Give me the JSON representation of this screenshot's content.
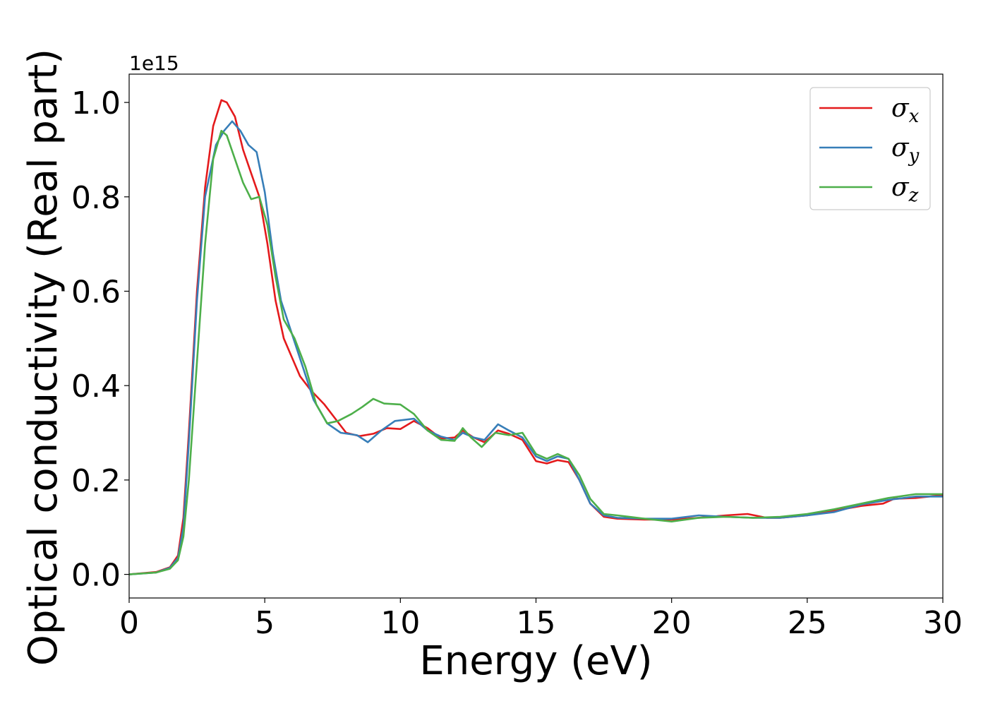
{
  "chart_data": {
    "type": "line",
    "xlabel": "Energy (eV)",
    "ylabel": "Optical conductivity (Real part)",
    "y_offset_label": "1e15",
    "xlim": [
      0,
      30
    ],
    "ylim": [
      -0.05,
      1.06
    ],
    "x_ticks": [
      0,
      5,
      10,
      15,
      20,
      25,
      30
    ],
    "x_tick_labels": [
      "0",
      "5",
      "10",
      "15",
      "20",
      "25",
      "30"
    ],
    "y_ticks": [
      0.0,
      0.2,
      0.4,
      0.6,
      0.8,
      1.0
    ],
    "y_tick_labels": [
      "0.0",
      "0.2",
      "0.4",
      "0.6",
      "0.8",
      "1.0"
    ],
    "grid": false,
    "legend_position": "top-right",
    "series": [
      {
        "name": "σx",
        "label_base": "σ",
        "label_sub": "x",
        "color": "#e41a1c",
        "points": [
          [
            0,
            0
          ],
          [
            1,
            0.005
          ],
          [
            1.5,
            0.015
          ],
          [
            1.8,
            0.04
          ],
          [
            2.0,
            0.12
          ],
          [
            2.2,
            0.3
          ],
          [
            2.5,
            0.6
          ],
          [
            2.8,
            0.82
          ],
          [
            3.1,
            0.95
          ],
          [
            3.4,
            1.005
          ],
          [
            3.6,
            1.0
          ],
          [
            3.9,
            0.97
          ],
          [
            4.2,
            0.9
          ],
          [
            4.5,
            0.85
          ],
          [
            4.8,
            0.8
          ],
          [
            5.1,
            0.7
          ],
          [
            5.4,
            0.58
          ],
          [
            5.7,
            0.5
          ],
          [
            6.0,
            0.46
          ],
          [
            6.3,
            0.42
          ],
          [
            6.7,
            0.39
          ],
          [
            7.2,
            0.36
          ],
          [
            7.6,
            0.33
          ],
          [
            8.0,
            0.3
          ],
          [
            8.5,
            0.293
          ],
          [
            9.0,
            0.298
          ],
          [
            9.5,
            0.31
          ],
          [
            10.0,
            0.308
          ],
          [
            10.5,
            0.325
          ],
          [
            11.0,
            0.31
          ],
          [
            11.5,
            0.288
          ],
          [
            12.0,
            0.29
          ],
          [
            12.3,
            0.305
          ],
          [
            12.7,
            0.29
          ],
          [
            13.1,
            0.28
          ],
          [
            13.6,
            0.305
          ],
          [
            14.0,
            0.298
          ],
          [
            14.5,
            0.285
          ],
          [
            15.0,
            0.24
          ],
          [
            15.4,
            0.235
          ],
          [
            15.8,
            0.242
          ],
          [
            16.2,
            0.238
          ],
          [
            16.6,
            0.2
          ],
          [
            17.0,
            0.15
          ],
          [
            17.5,
            0.122
          ],
          [
            18.0,
            0.118
          ],
          [
            19.0,
            0.116
          ],
          [
            20.0,
            0.116
          ],
          [
            21.0,
            0.12
          ],
          [
            22.0,
            0.125
          ],
          [
            22.8,
            0.128
          ],
          [
            23.5,
            0.12
          ],
          [
            24.0,
            0.12
          ],
          [
            25.0,
            0.125
          ],
          [
            26.0,
            0.135
          ],
          [
            27.0,
            0.145
          ],
          [
            27.8,
            0.15
          ],
          [
            28.2,
            0.16
          ],
          [
            29.0,
            0.162
          ],
          [
            30.0,
            0.168
          ]
        ]
      },
      {
        "name": "σy",
        "label_base": "σ",
        "label_sub": "y",
        "color": "#377eb8",
        "points": [
          [
            0,
            0
          ],
          [
            1,
            0.004
          ],
          [
            1.5,
            0.014
          ],
          [
            1.8,
            0.035
          ],
          [
            2.0,
            0.1
          ],
          [
            2.2,
            0.28
          ],
          [
            2.5,
            0.58
          ],
          [
            2.8,
            0.8
          ],
          [
            3.2,
            0.91
          ],
          [
            3.5,
            0.94
          ],
          [
            3.8,
            0.96
          ],
          [
            4.1,
            0.94
          ],
          [
            4.4,
            0.91
          ],
          [
            4.7,
            0.895
          ],
          [
            5.0,
            0.81
          ],
          [
            5.3,
            0.68
          ],
          [
            5.6,
            0.58
          ],
          [
            6.0,
            0.51
          ],
          [
            6.4,
            0.44
          ],
          [
            6.8,
            0.37
          ],
          [
            7.3,
            0.32
          ],
          [
            7.8,
            0.3
          ],
          [
            8.4,
            0.295
          ],
          [
            8.8,
            0.28
          ],
          [
            9.3,
            0.305
          ],
          [
            9.8,
            0.325
          ],
          [
            10.5,
            0.33
          ],
          [
            11.0,
            0.305
          ],
          [
            11.5,
            0.292
          ],
          [
            12.0,
            0.285
          ],
          [
            12.3,
            0.3
          ],
          [
            12.7,
            0.29
          ],
          [
            13.1,
            0.285
          ],
          [
            13.6,
            0.318
          ],
          [
            14.0,
            0.305
          ],
          [
            14.5,
            0.29
          ],
          [
            15.0,
            0.25
          ],
          [
            15.4,
            0.24
          ],
          [
            15.8,
            0.25
          ],
          [
            16.2,
            0.245
          ],
          [
            16.6,
            0.2
          ],
          [
            17.0,
            0.15
          ],
          [
            17.5,
            0.125
          ],
          [
            18.0,
            0.12
          ],
          [
            19.0,
            0.118
          ],
          [
            20.0,
            0.118
          ],
          [
            21.0,
            0.125
          ],
          [
            22.0,
            0.122
          ],
          [
            23.0,
            0.12
          ],
          [
            24.0,
            0.12
          ],
          [
            25.0,
            0.125
          ],
          [
            26.0,
            0.132
          ],
          [
            27.0,
            0.148
          ],
          [
            28.0,
            0.158
          ],
          [
            29.0,
            0.165
          ],
          [
            30.0,
            0.165
          ]
        ]
      },
      {
        "name": "σz",
        "label_base": "σ",
        "label_sub": "z",
        "color": "#4daf4a",
        "points": [
          [
            0,
            0
          ],
          [
            1,
            0.004
          ],
          [
            1.5,
            0.012
          ],
          [
            1.8,
            0.03
          ],
          [
            2.0,
            0.08
          ],
          [
            2.2,
            0.2
          ],
          [
            2.5,
            0.45
          ],
          [
            2.8,
            0.7
          ],
          [
            3.1,
            0.88
          ],
          [
            3.4,
            0.94
          ],
          [
            3.6,
            0.93
          ],
          [
            3.9,
            0.88
          ],
          [
            4.2,
            0.83
          ],
          [
            4.5,
            0.795
          ],
          [
            4.8,
            0.8
          ],
          [
            5.1,
            0.74
          ],
          [
            5.4,
            0.63
          ],
          [
            5.7,
            0.54
          ],
          [
            6.1,
            0.5
          ],
          [
            6.5,
            0.44
          ],
          [
            6.9,
            0.36
          ],
          [
            7.3,
            0.32
          ],
          [
            7.7,
            0.325
          ],
          [
            8.2,
            0.34
          ],
          [
            8.6,
            0.355
          ],
          [
            9.0,
            0.372
          ],
          [
            9.4,
            0.362
          ],
          [
            10.0,
            0.36
          ],
          [
            10.5,
            0.34
          ],
          [
            11.0,
            0.305
          ],
          [
            11.5,
            0.285
          ],
          [
            12.0,
            0.283
          ],
          [
            12.3,
            0.31
          ],
          [
            12.6,
            0.29
          ],
          [
            13.0,
            0.27
          ],
          [
            13.5,
            0.3
          ],
          [
            14.0,
            0.295
          ],
          [
            14.5,
            0.3
          ],
          [
            15.0,
            0.255
          ],
          [
            15.4,
            0.245
          ],
          [
            15.8,
            0.255
          ],
          [
            16.2,
            0.245
          ],
          [
            16.6,
            0.21
          ],
          [
            17.0,
            0.16
          ],
          [
            17.5,
            0.128
          ],
          [
            18.0,
            0.125
          ],
          [
            19.0,
            0.118
          ],
          [
            20.0,
            0.112
          ],
          [
            21.0,
            0.12
          ],
          [
            22.0,
            0.122
          ],
          [
            23.0,
            0.12
          ],
          [
            24.0,
            0.122
          ],
          [
            25.0,
            0.128
          ],
          [
            26.0,
            0.138
          ],
          [
            27.0,
            0.15
          ],
          [
            28.0,
            0.162
          ],
          [
            29.0,
            0.17
          ],
          [
            30.0,
            0.17
          ]
        ]
      }
    ]
  }
}
